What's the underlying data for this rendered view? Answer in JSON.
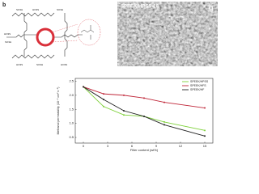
{
  "panel_label": "b",
  "diagram": {
    "labels": [
      "SO3H",
      "HO3S",
      "SO3H",
      "HO3S",
      "SO3H",
      "HO3S",
      "SO3H",
      "HO3S"
    ]
  },
  "image": {
    "caption": "SPEEK/HPSS-10",
    "label": "g"
  },
  "chart_data": {
    "type": "line",
    "xlabel": "Filler content (wt%)",
    "ylabel": "Methanol permeability (10⁻⁶ cm² s⁻¹)",
    "x": [
      0,
      2.5,
      5,
      7.5,
      10,
      15
    ],
    "series": [
      {
        "name": "SPEEK/HPSS",
        "color": "#7fd13b",
        "values": [
          2.3,
          1.6,
          1.3,
          1.25,
          1.05,
          0.75
        ]
      },
      {
        "name": "SPEEK/HFS",
        "color": "#c0283a",
        "values": [
          2.3,
          2.05,
          2.0,
          1.9,
          1.75,
          1.55
        ]
      },
      {
        "name": "SPEEK/HF",
        "color": "#222222",
        "values": [
          2.3,
          1.85,
          1.45,
          1.25,
          0.95,
          0.55
        ]
      }
    ],
    "xlim": [
      -1,
      16
    ],
    "xticks": [
      0,
      3,
      6,
      9,
      12,
      15
    ],
    "ylim": [
      0.3,
      2.6
    ],
    "yticks": [
      {
        "value": 0.5,
        "label": "0.5"
      },
      {
        "value": 1.0,
        "label": "1.0"
      },
      {
        "value": 1.5,
        "label": "1.5"
      },
      {
        "value": 2.0,
        "label": "2.0"
      },
      {
        "value": 2.5,
        "label": "2.5"
      }
    ],
    "legend": "upper-right"
  }
}
